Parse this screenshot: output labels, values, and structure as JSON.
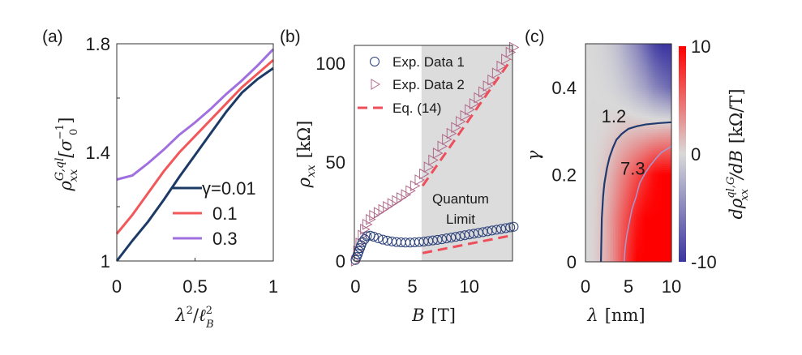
{
  "colors": {
    "navy": "#1c3a66",
    "red": "#f2585a",
    "purple": "#a070e0",
    "dash_red": "#ee4d5a",
    "triangle": "#b06a8a",
    "circle": "#2a3f78",
    "shade": "#dcdcdc",
    "cmap_low": "#3a34a0",
    "cmap_mid": "#d9d9d9",
    "cmap_high": "#ff0000",
    "contour_1": "#1f3a6e",
    "contour_2": "#a69ad0"
  },
  "chart_data": [
    {
      "panel": "(a)",
      "type": "line",
      "xlabel": {
        "base": "λ",
        "sup1": "2",
        "slash": "/",
        "ell": "ℓ",
        "sub": "B",
        "sup2": "2"
      },
      "ylabel": {
        "base": "ρ",
        "sub": "xx",
        "sup": "G,ql",
        "unit_open": "[σ",
        "unit_sub": "0",
        "unit_sup": "−1",
        "unit_close": "]"
      },
      "xlim": [
        0,
        1
      ],
      "ylim": [
        1,
        1.8
      ],
      "xticks": [
        "0",
        "0.5",
        "1"
      ],
      "yticks": [
        "1",
        "1.4",
        "1.8"
      ],
      "legend_location": "lower-right",
      "x": [
        0,
        0.1,
        0.2,
        0.3,
        0.4,
        0.5,
        0.6,
        0.7,
        0.8,
        0.9,
        1.0
      ],
      "series": [
        {
          "name": "γ=0.01",
          "color_key": "navy",
          "values": [
            1.0,
            1.075,
            1.145,
            1.225,
            1.31,
            1.39,
            1.47,
            1.55,
            1.62,
            1.67,
            1.71
          ]
        },
        {
          "name": "0.1",
          "color_key": "red",
          "values": [
            1.1,
            1.17,
            1.25,
            1.33,
            1.4,
            1.46,
            1.52,
            1.58,
            1.64,
            1.69,
            1.74
          ]
        },
        {
          "name": "0.3",
          "color_key": "purple",
          "values": [
            1.3,
            1.315,
            1.36,
            1.41,
            1.465,
            1.51,
            1.56,
            1.615,
            1.665,
            1.72,
            1.78
          ]
        }
      ]
    },
    {
      "panel": "(b)",
      "type": "scatter",
      "xlabel": {
        "base": "B",
        "unit": "[T]"
      },
      "ylabel": {
        "base": "ρ",
        "sub": "xx",
        "unit": "[kΩ]"
      },
      "xlim": [
        -0.1,
        13.8
      ],
      "ylim": [
        0,
        109
      ],
      "xticks": [
        "0",
        "5",
        "10"
      ],
      "yticks": [
        "0",
        "50",
        "100"
      ],
      "legend_location": "top-left",
      "shaded_region": {
        "x_from": 5.8,
        "label_line1": "Quantum",
        "label_line2": "Limit"
      },
      "series": [
        {
          "name": "Exp. Data 1",
          "marker": "circle",
          "x": [
            0,
            0.1,
            0.2,
            0.3,
            0.4,
            0.5,
            0.6,
            0.8,
            1.0,
            1.3,
            1.6,
            2.0,
            2.4,
            2.8,
            3.2,
            3.6,
            4.0,
            4.4,
            4.8,
            5.2,
            5.6,
            6.0,
            6.4,
            6.8,
            7.2,
            7.6,
            8.0,
            8.4,
            8.8,
            9.2,
            9.6,
            10.0,
            10.4,
            10.8,
            11.2,
            11.6,
            12.0,
            12.4,
            12.8,
            13.2,
            13.6,
            13.9
          ],
          "y": [
            0.5,
            2,
            3.5,
            5,
            6.5,
            8,
            9.5,
            11,
            12.5,
            12.8,
            12.3,
            11.5,
            10.8,
            10.3,
            9.9,
            9.6,
            9.4,
            9.3,
            9.3,
            9.4,
            9.6,
            9.8,
            10.1,
            10.4,
            10.7,
            11,
            11.4,
            11.8,
            12.2,
            12.6,
            13,
            13.4,
            13.8,
            14.2,
            14.6,
            15,
            15.4,
            15.8,
            16.2,
            16.6,
            17,
            17.3
          ]
        },
        {
          "name": "Exp. Data 2",
          "marker": "triangle-right",
          "x": [
            0,
            0.2,
            0.4,
            0.6,
            0.8,
            1.0,
            1.3,
            1.6,
            2.0,
            2.4,
            2.8,
            3.2,
            3.6,
            4.0,
            4.4,
            4.8,
            5.2,
            5.6,
            6.0,
            6.4,
            6.8,
            7.2,
            7.6,
            8.0,
            8.4,
            8.8,
            9.2,
            9.6,
            10.0,
            10.4,
            10.8,
            11.2,
            11.6,
            12.0,
            12.4,
            12.8,
            13.2,
            13.6,
            13.9
          ],
          "y": [
            0,
            5,
            9,
            13,
            16,
            18.5,
            21,
            23,
            24.5,
            26,
            27.5,
            29,
            30.5,
            32,
            33.5,
            35.5,
            38,
            41,
            44,
            47.5,
            51,
            54.5,
            58,
            61.5,
            64.5,
            67.5,
            70.5,
            73.5,
            76.5,
            79.5,
            82.5,
            85.5,
            88.5,
            91.5,
            95,
            98.5,
            102,
            105.5,
            108
          ]
        },
        {
          "name": "Eq. (14)",
          "marker": "dashed-line",
          "segments": [
            {
              "x": [
                5.9,
                13.7
              ],
              "y": [
                38,
                102
              ]
            },
            {
              "x": [
                5.9,
                13.8
              ],
              "y": [
                4,
                13
              ]
            }
          ]
        }
      ]
    },
    {
      "panel": "(c)",
      "type": "heatmap",
      "xlabel": {
        "base": "λ",
        "unit": "[nm]"
      },
      "ylabel": {
        "base": "γ"
      },
      "colorbar_label": {
        "d": "d",
        "base": "ρ",
        "sub": "xx",
        "sup": "ql,G",
        "rest": "/dB",
        "unit": "[kΩ/T]"
      },
      "xlim": [
        0,
        10
      ],
      "ylim": [
        0,
        0.5
      ],
      "xticks": [
        "0",
        "5",
        "10"
      ],
      "yticks": [
        "0",
        "0.2",
        "0.4"
      ],
      "clim": [
        -10,
        10
      ],
      "colorbar_ticks": [
        "-10",
        "0",
        "10"
      ],
      "x": [
        0,
        1,
        2,
        3,
        4,
        5,
        6,
        7,
        8,
        9,
        10
      ],
      "y": [
        0,
        0.1,
        0.2,
        0.3,
        0.4,
        0.5
      ],
      "z": [
        [
          0,
          0.3,
          1.5,
          3,
          5.5,
          8,
          10,
          10,
          10,
          10,
          10
        ],
        [
          0,
          0.3,
          1.3,
          3,
          5,
          7,
          9,
          10,
          10,
          10,
          10
        ],
        [
          0,
          0.2,
          0.8,
          2,
          3.5,
          5,
          6.5,
          8,
          9.5,
          10,
          10
        ],
        [
          0,
          0.1,
          0.2,
          0.5,
          0.9,
          1.2,
          1.4,
          1.6,
          1.8,
          2,
          2.2
        ],
        [
          0,
          0,
          -0.1,
          -0.3,
          -0.8,
          -1.5,
          -2.5,
          -3.5,
          -5,
          -6,
          -7
        ],
        [
          0,
          -0.1,
          -0.4,
          -1,
          -2,
          -3.5,
          -5,
          -7,
          -9,
          -10,
          -10
        ]
      ],
      "contours": [
        {
          "level": "1.2",
          "color_key": "contour_1",
          "label_at": [
            3.3,
            0.335
          ],
          "x": [
            1.8,
            1.85,
            1.9,
            2.05,
            2.2,
            2.5,
            2.8,
            3.2,
            3.6,
            4.2,
            5,
            6,
            7,
            8.5,
            10
          ],
          "y": [
            0,
            0.05,
            0.1,
            0.15,
            0.18,
            0.215,
            0.24,
            0.262,
            0.28,
            0.293,
            0.305,
            0.311,
            0.315,
            0.318,
            0.32
          ]
        },
        {
          "level": "7.3",
          "color_key": "contour_2",
          "label_at": [
            5.5,
            0.215
          ],
          "x": [
            4.5,
            4.6,
            4.8,
            5.1,
            5.4,
            5.9,
            6.3,
            7,
            7.5,
            8.2,
            8.8,
            10
          ],
          "y": [
            0,
            0.03,
            0.06,
            0.09,
            0.12,
            0.15,
            0.18,
            0.205,
            0.22,
            0.237,
            0.25,
            0.265
          ]
        }
      ]
    }
  ]
}
